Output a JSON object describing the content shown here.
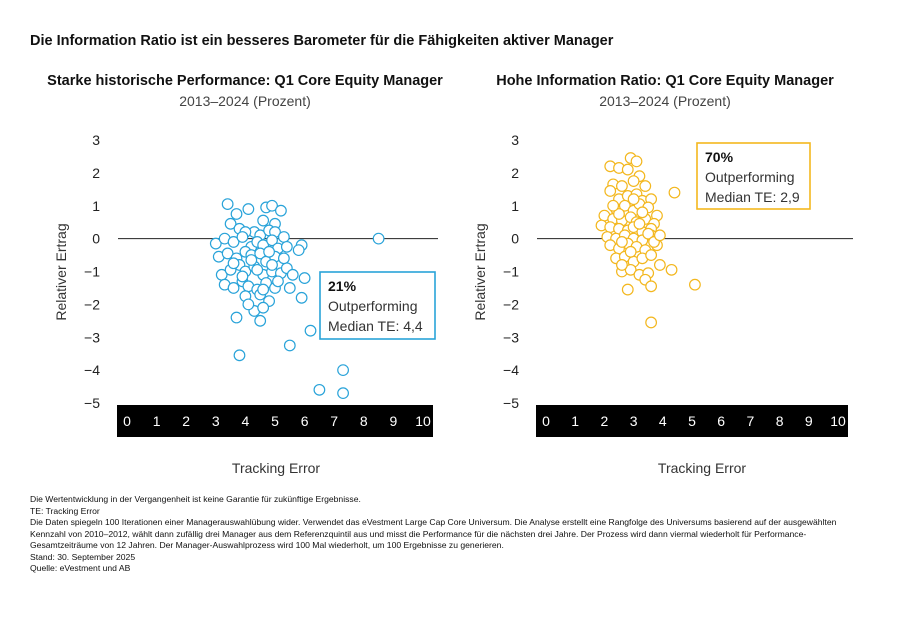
{
  "title": "Die Information Ratio ist ein besseres Barometer für die Fähigkeiten aktiver Manager",
  "chart_data": [
    {
      "type": "scatter",
      "title": "Starke historische Performance: Q1 Core Equity Manager",
      "subtitle": "2013–2024 (Prozent)",
      "xlabel": "Tracking Error",
      "ylabel": "Relativer Ertrag",
      "xlim": [
        0,
        10
      ],
      "ylim": [
        -5,
        3
      ],
      "xticks": [
        "0",
        "1",
        "2",
        "3",
        "4",
        "5",
        "6",
        "7",
        "8",
        "9",
        "10"
      ],
      "yticks": [
        "3",
        "2",
        "1",
        "0",
        "−1",
        "−2",
        "−3",
        "−4",
        "−5"
      ],
      "color": "#29a3d9",
      "annotation": {
        "value": "21%",
        "line1": "Outperforming",
        "line2": "Median TE: 4,4"
      },
      "points": [
        [
          3.4,
          1.05
        ],
        [
          3.7,
          0.75
        ],
        [
          4.1,
          0.9
        ],
        [
          4.3,
          0.2
        ],
        [
          4.6,
          0.55
        ],
        [
          4.7,
          0.95
        ],
        [
          4.9,
          1.0
        ],
        [
          5.2,
          0.85
        ],
        [
          5.0,
          0.45
        ],
        [
          3.5,
          0.45
        ],
        [
          3.8,
          0.3
        ],
        [
          4.0,
          0.2
        ],
        [
          4.5,
          0.1
        ],
        [
          4.8,
          0.25
        ],
        [
          5.0,
          0.2
        ],
        [
          5.3,
          0.05
        ],
        [
          5.9,
          -0.2
        ],
        [
          3.0,
          -0.15
        ],
        [
          3.3,
          0.0
        ],
        [
          3.6,
          -0.1
        ],
        [
          3.9,
          0.05
        ],
        [
          4.2,
          -0.25
        ],
        [
          4.4,
          -0.1
        ],
        [
          4.6,
          -0.2
        ],
        [
          4.9,
          -0.05
        ],
        [
          5.1,
          -0.3
        ],
        [
          5.8,
          -0.35
        ],
        [
          3.1,
          -0.55
        ],
        [
          3.4,
          -0.45
        ],
        [
          3.7,
          -0.6
        ],
        [
          4.0,
          -0.4
        ],
        [
          4.2,
          -0.5
        ],
        [
          4.5,
          -0.45
        ],
        [
          4.7,
          -0.7
        ],
        [
          5.0,
          -0.55
        ],
        [
          3.2,
          -1.1
        ],
        [
          3.5,
          -0.95
        ],
        [
          3.8,
          -0.8
        ],
        [
          4.0,
          -1.0
        ],
        [
          4.3,
          -0.85
        ],
        [
          4.6,
          -1.1
        ],
        [
          4.9,
          -1.0
        ],
        [
          5.2,
          -1.05
        ],
        [
          5.4,
          -0.9
        ],
        [
          6.0,
          -1.2
        ],
        [
          3.3,
          -1.4
        ],
        [
          3.6,
          -1.5
        ],
        [
          3.9,
          -1.3
        ],
        [
          4.1,
          -1.45
        ],
        [
          4.4,
          -1.55
        ],
        [
          4.7,
          -1.35
        ],
        [
          5.0,
          -1.5
        ],
        [
          5.5,
          -1.5
        ],
        [
          4.0,
          -1.75
        ],
        [
          4.5,
          -1.7
        ],
        [
          4.8,
          -1.9
        ],
        [
          5.9,
          -1.8
        ],
        [
          4.3,
          -2.2
        ],
        [
          4.6,
          -2.1
        ],
        [
          4.5,
          -2.5
        ],
        [
          3.7,
          -2.4
        ],
        [
          6.2,
          -2.8
        ],
        [
          5.5,
          -3.25
        ],
        [
          3.8,
          -3.55
        ],
        [
          7.3,
          -4.0
        ],
        [
          6.5,
          -4.6
        ],
        [
          7.3,
          -4.7
        ],
        [
          8.5,
          0.0
        ],
        [
          4.2,
          -0.65
        ],
        [
          3.9,
          -1.15
        ],
        [
          5.3,
          -0.6
        ],
        [
          4.8,
          -0.4
        ],
        [
          5.6,
          -1.1
        ],
        [
          4.4,
          -0.95
        ],
        [
          3.6,
          -0.75
        ],
        [
          5.1,
          -1.3
        ],
        [
          4.6,
          -1.55
        ],
        [
          4.1,
          -2.0
        ],
        [
          4.9,
          -0.8
        ],
        [
          5.4,
          -0.25
        ]
      ]
    },
    {
      "type": "scatter",
      "title": "Hohe Information Ratio: Q1 Core Equity Manager",
      "subtitle": "2013–2024 (Prozent)",
      "xlabel": "Tracking Error",
      "ylabel": "Relativer Ertrag",
      "xlim": [
        0,
        10
      ],
      "ylim": [
        -5,
        3
      ],
      "xticks": [
        "0",
        "1",
        "2",
        "3",
        "4",
        "5",
        "6",
        "7",
        "8",
        "9",
        "10"
      ],
      "yticks": [
        "3",
        "2",
        "1",
        "0",
        "−1",
        "−2",
        "−3",
        "−4",
        "−5"
      ],
      "color": "#f3b71e",
      "annotation": {
        "value": "70%",
        "line1": "Outperforming",
        "line2": "Median TE: 2,9"
      },
      "points": [
        [
          2.2,
          2.2
        ],
        [
          2.5,
          2.15
        ],
        [
          2.9,
          2.45
        ],
        [
          3.1,
          2.35
        ],
        [
          2.8,
          2.1
        ],
        [
          3.2,
          1.9
        ],
        [
          2.3,
          1.65
        ],
        [
          2.6,
          1.6
        ],
        [
          3.0,
          1.75
        ],
        [
          3.4,
          1.6
        ],
        [
          4.4,
          1.4
        ],
        [
          2.2,
          1.45
        ],
        [
          2.5,
          1.2
        ],
        [
          2.8,
          1.3
        ],
        [
          3.1,
          1.35
        ],
        [
          3.3,
          1.15
        ],
        [
          3.6,
          1.2
        ],
        [
          2.4,
          0.9
        ],
        [
          2.7,
          1.0
        ],
        [
          3.0,
          0.85
        ],
        [
          3.2,
          1.05
        ],
        [
          3.5,
          0.95
        ],
        [
          3.8,
          0.7
        ],
        [
          2.0,
          0.7
        ],
        [
          2.3,
          0.6
        ],
        [
          2.6,
          0.55
        ],
        [
          2.9,
          0.65
        ],
        [
          3.1,
          0.5
        ],
        [
          3.4,
          0.6
        ],
        [
          3.7,
          0.45
        ],
        [
          1.9,
          0.4
        ],
        [
          2.2,
          0.35
        ],
        [
          2.5,
          0.3
        ],
        [
          2.8,
          0.25
        ],
        [
          3.0,
          0.35
        ],
        [
          3.3,
          0.2
        ],
        [
          3.6,
          0.3
        ],
        [
          2.1,
          0.05
        ],
        [
          2.4,
          0.0
        ],
        [
          2.7,
          0.1
        ],
        [
          3.0,
          0.0
        ],
        [
          3.3,
          -0.05
        ],
        [
          3.6,
          0.1
        ],
        [
          2.2,
          -0.2
        ],
        [
          2.5,
          -0.3
        ],
        [
          2.8,
          -0.15
        ],
        [
          3.1,
          -0.25
        ],
        [
          3.4,
          -0.35
        ],
        [
          3.8,
          -0.2
        ],
        [
          2.4,
          -0.6
        ],
        [
          2.7,
          -0.55
        ],
        [
          3.0,
          -0.7
        ],
        [
          3.3,
          -0.6
        ],
        [
          3.6,
          -0.5
        ],
        [
          3.9,
          -0.8
        ],
        [
          2.6,
          -1.0
        ],
        [
          2.9,
          -0.95
        ],
        [
          3.2,
          -1.1
        ],
        [
          3.5,
          -1.05
        ],
        [
          4.3,
          -0.95
        ],
        [
          3.4,
          -1.25
        ],
        [
          3.6,
          -1.45
        ],
        [
          2.8,
          -1.55
        ],
        [
          5.1,
          -1.4
        ],
        [
          3.6,
          -2.55
        ],
        [
          2.6,
          -0.8
        ],
        [
          3.0,
          1.2
        ],
        [
          3.3,
          0.8
        ],
        [
          2.5,
          0.75
        ],
        [
          3.5,
          0.15
        ],
        [
          2.9,
          -0.4
        ],
        [
          3.2,
          0.45
        ],
        [
          3.7,
          -0.1
        ],
        [
          2.3,
          1.0
        ],
        [
          3.9,
          0.1
        ],
        [
          2.6,
          -0.1
        ]
      ]
    }
  ],
  "footnotes": [
    "Die Wertentwicklung in der Vergangenheit ist keine Garantie für zukünftige Ergebnisse.",
    "TE: Tracking Error",
    "Die Daten spiegeln 100 Iterationen einer Managerauswahlübung wider. Verwendet das eVestment Large Cap Core Universum. Die Analyse erstellt eine Rangfolge des Universums basierend auf der ausgewählten",
    "Kennzahl von 2010–2012, wählt dann zufällig drei Manager aus dem Referenzquintil aus und misst die Performance für die nächsten drei Jahre. Der Prozess wird dann viermal wiederholt für Performance-",
    "Gesamtzeiträume von 12 Jahren. Der Manager-Auswahlprozess wird 100 Mal wiederholt, um 100 Ergebnisse zu generieren.",
    "Stand: 30. September 2025",
    "Quelle: eVestment und AB"
  ]
}
